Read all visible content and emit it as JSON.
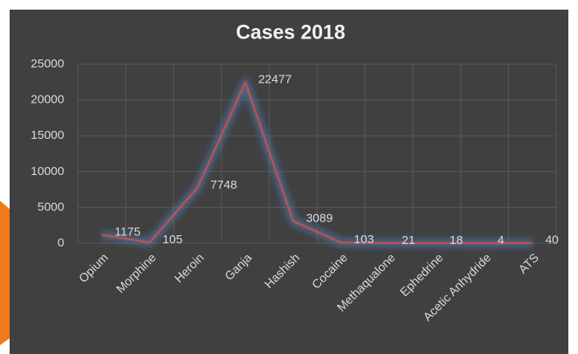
{
  "chart_data": {
    "type": "line",
    "title": "Cases 2018",
    "categories": [
      "Opium",
      "Morphine",
      "Heroin",
      "Ganja",
      "Hashish",
      "Cocaine",
      "Methaqualone",
      "Ephedrine",
      "Acetic Anhydride",
      "ATS"
    ],
    "values": [
      1175,
      105,
      7748,
      22477,
      3089,
      103,
      21,
      18,
      4,
      40
    ],
    "color": "#c0504d",
    "ylim": [
      0,
      25000
    ],
    "yticks": [
      0,
      5000,
      10000,
      15000,
      20000,
      25000
    ],
    "grid": true
  }
}
